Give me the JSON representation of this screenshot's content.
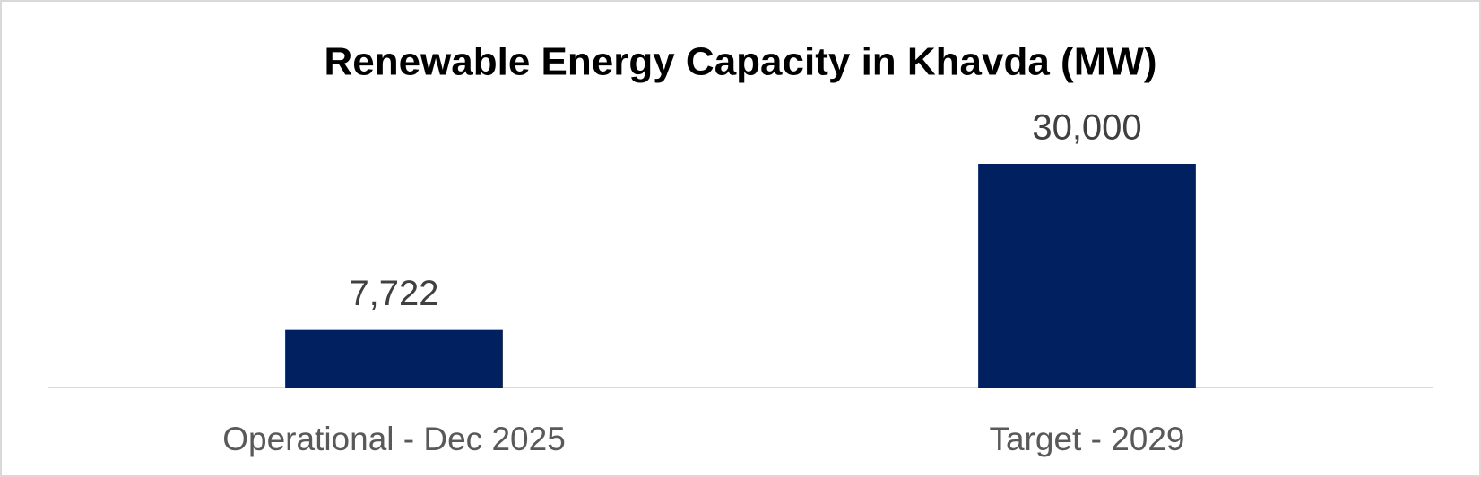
{
  "chart_data": {
    "type": "bar",
    "title": "Renewable Energy Capacity in Khavda (MW)",
    "categories": [
      "Operational - Dec 2025",
      "Target - 2029"
    ],
    "values": [
      7722,
      30000
    ],
    "value_labels": [
      "7,722",
      "30,000"
    ],
    "color": "#002060"
  }
}
